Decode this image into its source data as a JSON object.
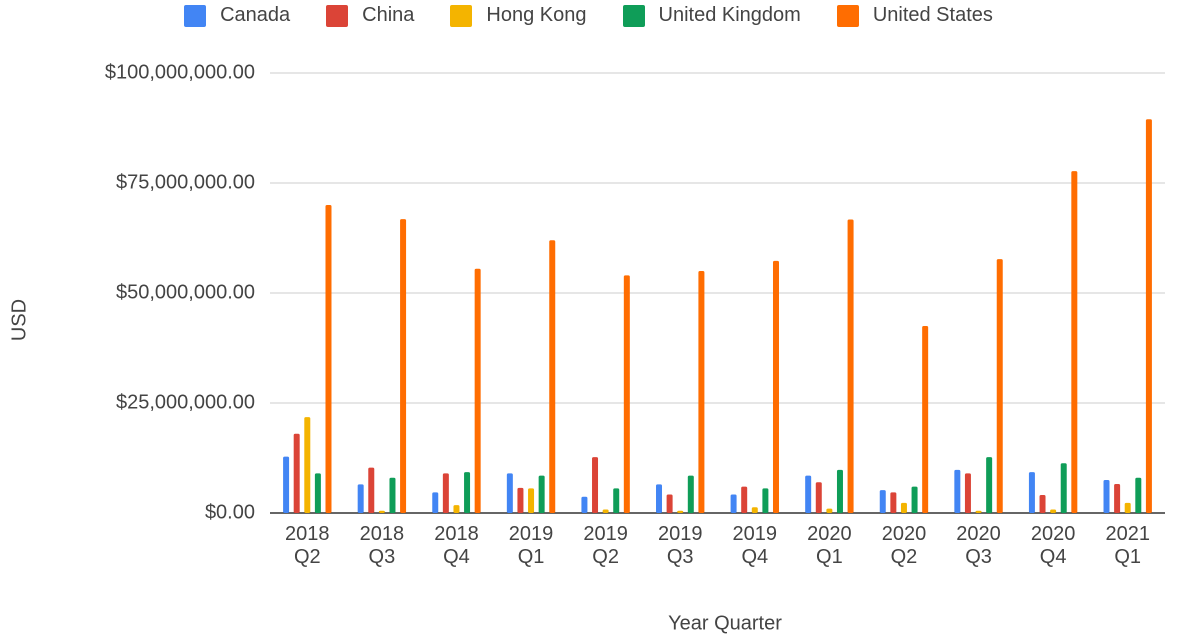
{
  "chart_data": {
    "type": "bar",
    "x_label": "Year Quarter",
    "y_label": "USD",
    "categories": [
      "2018 Q2",
      "2018 Q3",
      "2018 Q4",
      "2019 Q1",
      "2019 Q2",
      "2019 Q3",
      "2019 Q4",
      "2020 Q1",
      "2020 Q2",
      "2020 Q3",
      "2020 Q4",
      "2021 Q1"
    ],
    "series": [
      {
        "name": "Canada",
        "color": "#4285f4",
        "values": [
          12800000,
          6500000,
          4700000,
          9000000,
          3700000,
          6500000,
          4200000,
          8500000,
          5200000,
          9800000,
          9300000,
          7500000
        ]
      },
      {
        "name": "China",
        "color": "#db4437",
        "values": [
          18000000,
          10300000,
          9000000,
          5700000,
          12700000,
          4200000,
          6000000,
          7000000,
          4700000,
          9000000,
          4100000,
          6600000
        ]
      },
      {
        "name": "Hong Kong",
        "color": "#f4b400",
        "values": [
          21800000,
          500000,
          1800000,
          5600000,
          800000,
          500000,
          1300000,
          1000000,
          2300000,
          500000,
          800000,
          2300000
        ]
      },
      {
        "name": "United Kingdom",
        "color": "#0f9d58",
        "values": [
          9000000,
          8000000,
          9300000,
          8500000,
          5600000,
          8500000,
          5600000,
          9800000,
          6000000,
          12700000,
          11300000,
          8000000
        ]
      },
      {
        "name": "United States",
        "color": "#ff6d01",
        "values": [
          70000000,
          66800000,
          55500000,
          62000000,
          54000000,
          55000000,
          57300000,
          66700000,
          42500000,
          57700000,
          77700000,
          89500000
        ]
      }
    ],
    "ylim": [
      0,
      100000000
    ],
    "yticks": [
      {
        "value": 0,
        "label": "$0.00"
      },
      {
        "value": 25000000,
        "label": "$25,000,000.00"
      },
      {
        "value": 50000000,
        "label": "$50,000,000.00"
      },
      {
        "value": 75000000,
        "label": "$75,000,000.00"
      },
      {
        "value": 100000000,
        "label": "$100,000,000.00"
      }
    ],
    "grid": true
  }
}
